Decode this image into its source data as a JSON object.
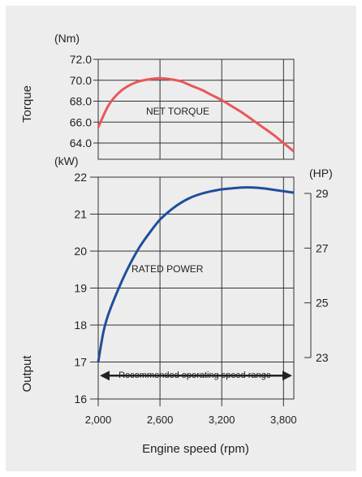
{
  "chart_data": [
    {
      "type": "line",
      "ylabel": "Torque",
      "yunit": "(Nm)",
      "xlim": [
        2000,
        3900
      ],
      "ylim": [
        63.0,
        72.0
      ],
      "yticks": [
        {
          "value": 72.0,
          "label": "72.0"
        },
        {
          "value": 70.0,
          "label": "70.0"
        },
        {
          "value": 68.0,
          "label": "68.0"
        },
        {
          "value": 66.0,
          "label": "66.0"
        },
        {
          "value": 64.0,
          "label": "64.0"
        }
      ],
      "series": [
        {
          "name": "NET TORQUE",
          "color": "#e8575a",
          "x": [
            2000,
            2100,
            2200,
            2300,
            2400,
            2500,
            2600,
            2700,
            2800,
            2900,
            3000,
            3100,
            3200,
            3300,
            3400,
            3500,
            3600,
            3700,
            3800,
            3900
          ],
          "y": [
            65.5,
            67.6,
            68.8,
            69.5,
            69.9,
            70.1,
            70.2,
            70.1,
            69.9,
            69.5,
            69.1,
            68.6,
            68.1,
            67.5,
            66.9,
            66.2,
            65.5,
            64.8,
            64.0,
            63.2
          ]
        }
      ],
      "grid": true
    },
    {
      "type": "line",
      "xlabel": "Engine speed (rpm)",
      "ylabel": "Output",
      "yunit": "(kW)",
      "y2unit": "(HP)",
      "xlim": [
        2000,
        3900
      ],
      "ylim": [
        16,
        22
      ],
      "y2lim": [
        23,
        29
      ],
      "xticks": [
        {
          "value": 2000,
          "label": "2,000"
        },
        {
          "value": 2600,
          "label": "2,600"
        },
        {
          "value": 3200,
          "label": "3,200"
        },
        {
          "value": 3800,
          "label": "3,800"
        }
      ],
      "yticks": [
        {
          "value": 22,
          "label": "22"
        },
        {
          "value": 21,
          "label": "21"
        },
        {
          "value": 20,
          "label": "20"
        },
        {
          "value": 19,
          "label": "19"
        },
        {
          "value": 18,
          "label": "18"
        },
        {
          "value": 17,
          "label": "17"
        },
        {
          "value": 16,
          "label": "16"
        }
      ],
      "y2ticks": [
        {
          "value": 29,
          "label": "29"
        },
        {
          "value": 27,
          "label": "27"
        },
        {
          "value": 25,
          "label": "25"
        },
        {
          "value": 23,
          "label": "23"
        }
      ],
      "series": [
        {
          "name": "RATED POWER",
          "color": "#1f4e9c",
          "x": [
            2000,
            2050,
            2100,
            2200,
            2300,
            2400,
            2500,
            2600,
            2700,
            2800,
            2900,
            3000,
            3100,
            3200,
            3300,
            3400,
            3500,
            3600,
            3700,
            3800,
            3900
          ],
          "y": [
            17.0,
            17.8,
            18.3,
            19.0,
            19.6,
            20.1,
            20.5,
            20.85,
            21.1,
            21.3,
            21.45,
            21.55,
            21.62,
            21.67,
            21.7,
            21.72,
            21.72,
            21.7,
            21.66,
            21.62,
            21.58
          ]
        }
      ],
      "range_annotation": {
        "label": "Recommended operating speed range",
        "from": 2000,
        "to": 3900,
        "y": 16.5
      },
      "grid": true
    }
  ]
}
